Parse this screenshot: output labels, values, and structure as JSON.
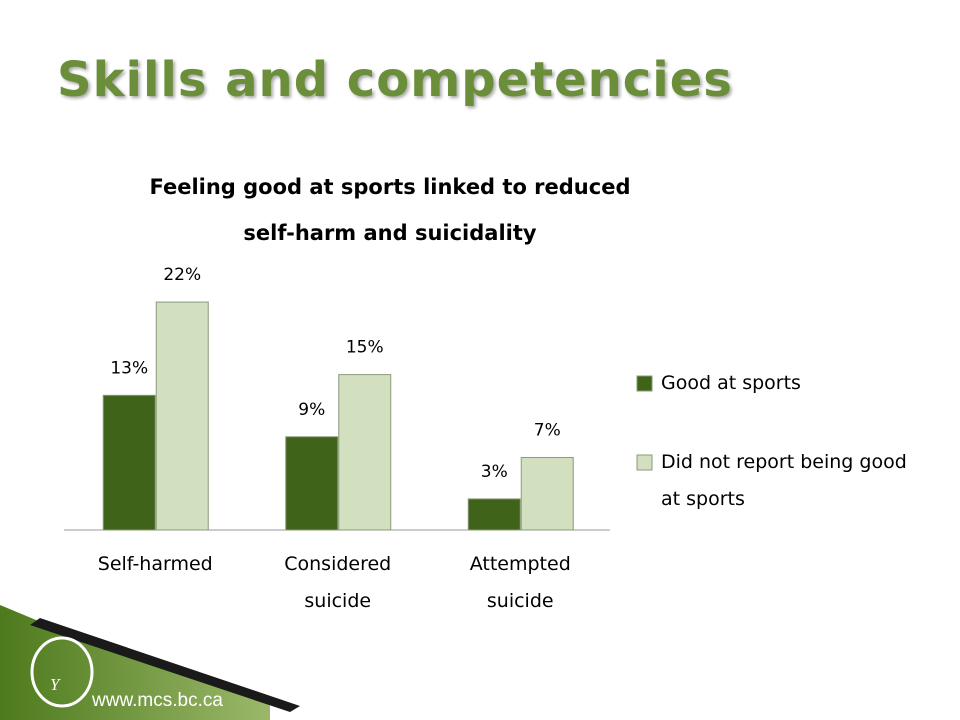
{
  "slide": {
    "title": "Skills and competencies",
    "url": "www.mcs.bc.ca"
  },
  "chart_data": {
    "type": "bar",
    "title": "Feeling good at sports linked to reduced self-harm and suicidality",
    "categories": [
      "Self-harmed",
      "Considered suicide",
      "Attempted suicide"
    ],
    "series": [
      {
        "name": "Good at sports",
        "color": "#3f6318",
        "values": [
          13,
          9,
          3
        ],
        "value_labels": [
          "13%",
          "9%",
          "3%"
        ]
      },
      {
        "name": "Did not report being good at sports",
        "color": "#d3e0c0",
        "values": [
          22,
          15,
          7
        ],
        "value_labels": [
          "22%",
          "15%",
          "7%"
        ]
      }
    ],
    "legend": "right"
  }
}
